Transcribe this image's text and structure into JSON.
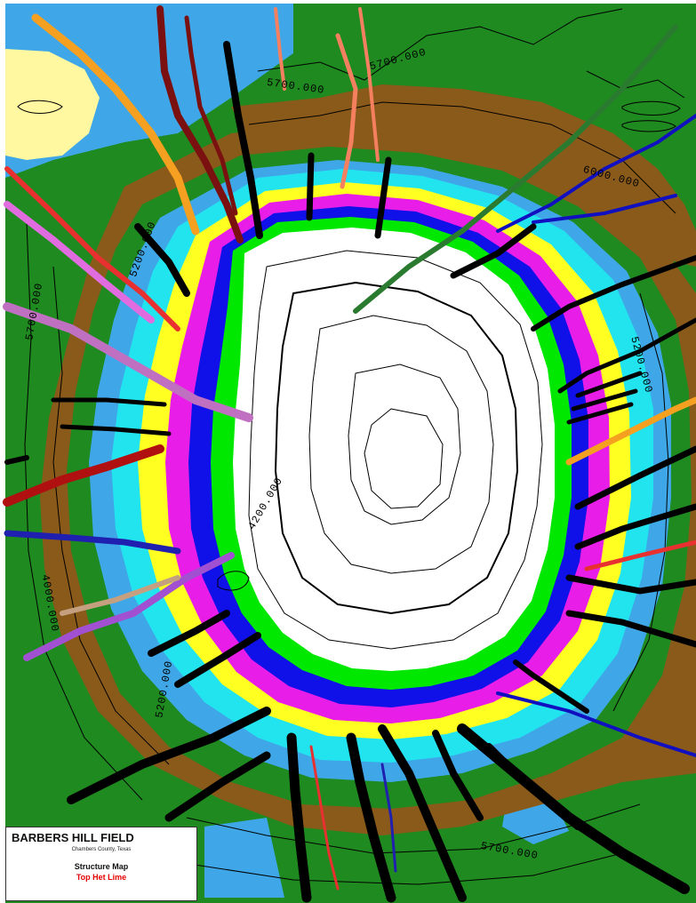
{
  "legend": {
    "title": "BARBERS HILL FIELD",
    "county": "Chambers County, Texas",
    "map_type": "Structure Map",
    "horizon": "Top Het Lime"
  },
  "contour_labels": [
    "5700.000",
    "5700.000",
    "5200.000",
    "5700.000",
    "4200.000",
    "5200.000",
    "5200.000",
    "6000.000",
    "5700.000",
    "4000.000"
  ],
  "colors": {
    "deep_green": "#1f8a1f",
    "brown": "#8a5a1a",
    "sky_blue": "#3fa7e8",
    "cyan": "#22e4ef",
    "yellow": "#ffff22",
    "magenta": "#e81ee8",
    "blue": "#1010e8",
    "green": "#00e800",
    "dome": "#ffffff",
    "pale_yellow": "#fff8a0",
    "horizon_text": "#e60000"
  }
}
